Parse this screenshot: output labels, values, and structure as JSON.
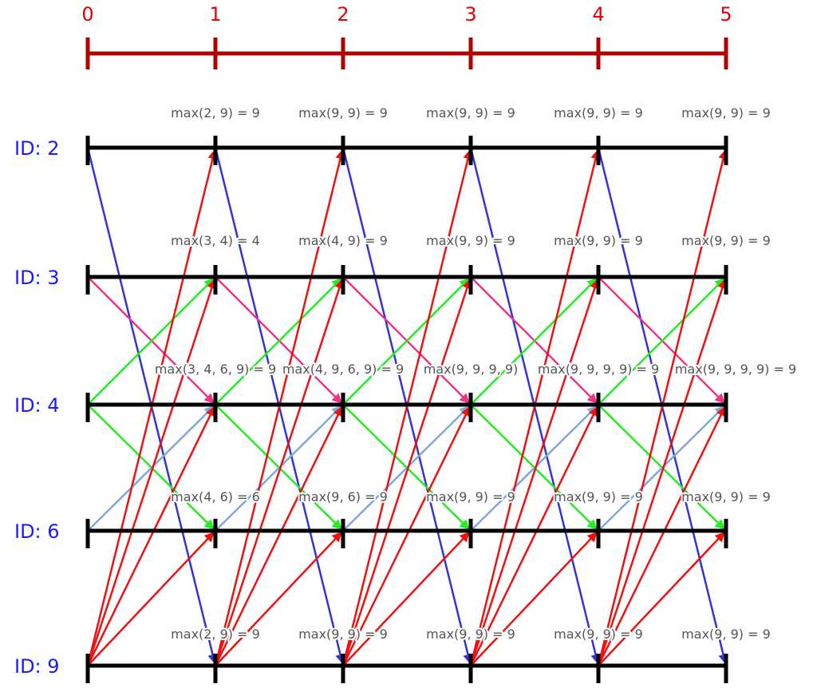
{
  "timeline": {
    "rounds": [
      "0",
      "1",
      "2",
      "3",
      "4",
      "5"
    ],
    "color": "#b30000",
    "label_color": "#e60000"
  },
  "nodes": [
    {
      "label": "ID: 2",
      "states": [
        "max(2, 9) = 9",
        "max(9, 9) = 9",
        "max(9, 9) = 9",
        "max(9, 9) = 9",
        "max(9, 9) = 9"
      ]
    },
    {
      "label": "ID: 3",
      "states": [
        "max(3, 4) = 4",
        "max(4, 9) = 9",
        "max(9, 9) = 9",
        "max(9, 9) = 9",
        "max(9, 9) = 9"
      ]
    },
    {
      "label": "ID: 4",
      "states": [
        "max(3, 4, 6, 9) = 9",
        "max(4, 9, 6, 9) = 9",
        "max(9, 9, 9, 9)",
        "max(9, 9, 9, 9) = 9",
        "max(9, 9, 9, 9) = 9"
      ]
    },
    {
      "label": "ID: 6",
      "states": [
        "max(4, 6) = 6",
        "max(9, 6) = 9",
        "max(9, 9) = 9",
        "max(9, 9) = 9",
        "max(9, 9) = 9"
      ]
    },
    {
      "label": "ID: 9",
      "states": [
        "max(2, 9) = 9",
        "max(9, 9) = 9",
        "max(9, 9) = 9",
        "max(9, 9) = 9",
        "max(9, 9) = 9"
      ]
    }
  ],
  "messages": [
    {
      "from": 0,
      "to": 4,
      "color": "#3333dd"
    },
    {
      "from": 1,
      "to": 2,
      "color": "#ee3388"
    },
    {
      "from": 2,
      "to": 1,
      "color": "#22ee22"
    },
    {
      "from": 2,
      "to": 3,
      "color": "#22ee22"
    },
    {
      "from": 3,
      "to": 2,
      "color": "#7fa8dd"
    },
    {
      "from": 4,
      "to": 0,
      "color": "#ee1111"
    },
    {
      "from": 4,
      "to": 1,
      "color": "#ee1111"
    },
    {
      "from": 4,
      "to": 2,
      "color": "#ee1111"
    },
    {
      "from": 4,
      "to": 3,
      "color": "#ee1111"
    }
  ],
  "colors": {
    "node_line": "#000000",
    "node_label": "#1a1aff",
    "state_label": "#555555"
  }
}
